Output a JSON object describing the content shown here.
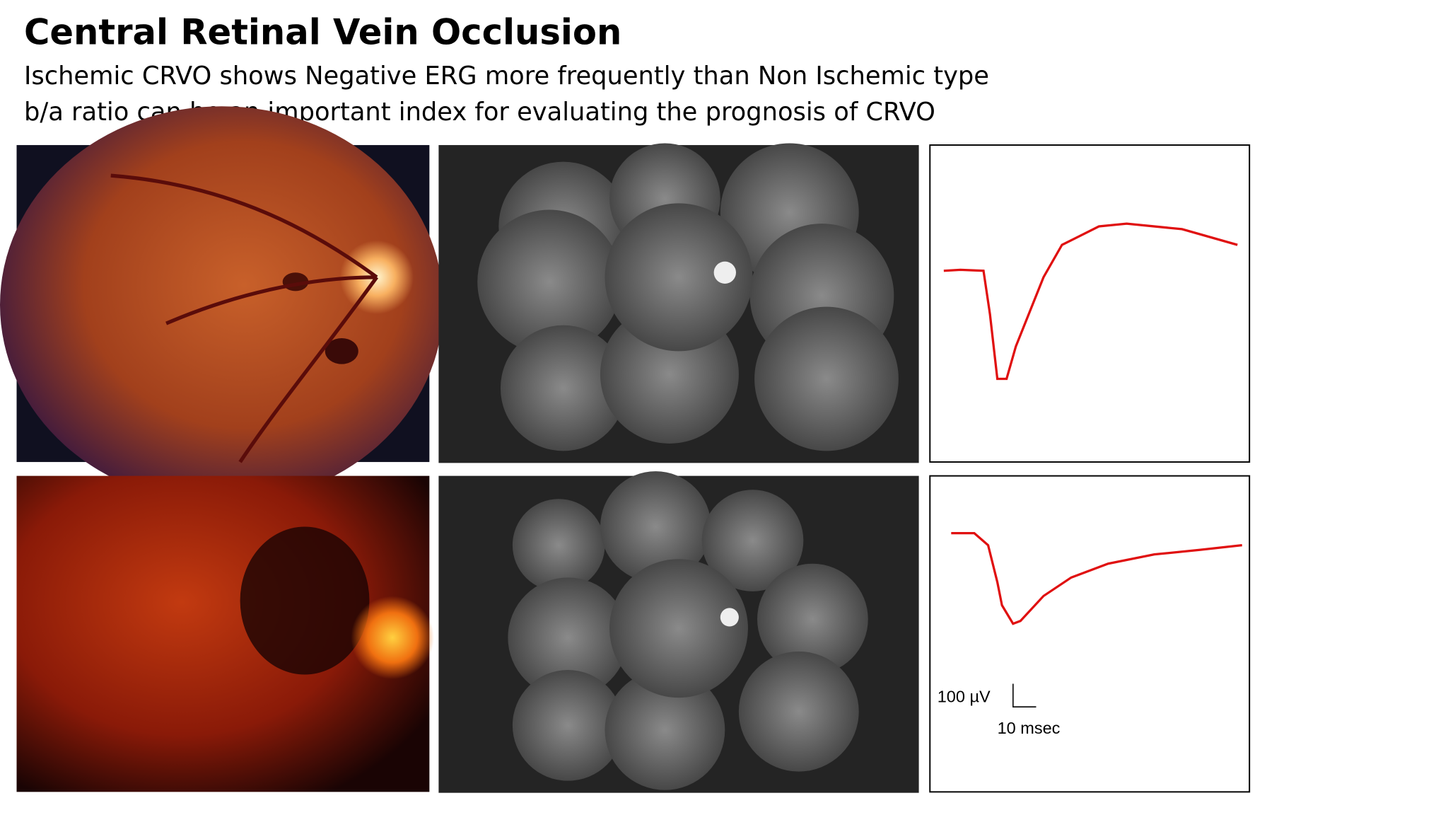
{
  "header": {
    "title": "Central Retinal Vein Occlusion",
    "lines": [
      "Ischemic CRVO shows Negative ERG more frequently than Non Ischemic type",
      "b/a ratio can be an important index for evaluating the prognosis of CRVO"
    ]
  },
  "figure": {
    "scale_bar": {
      "voltage": "100 µV",
      "time": "10 msec"
    }
  }
}
